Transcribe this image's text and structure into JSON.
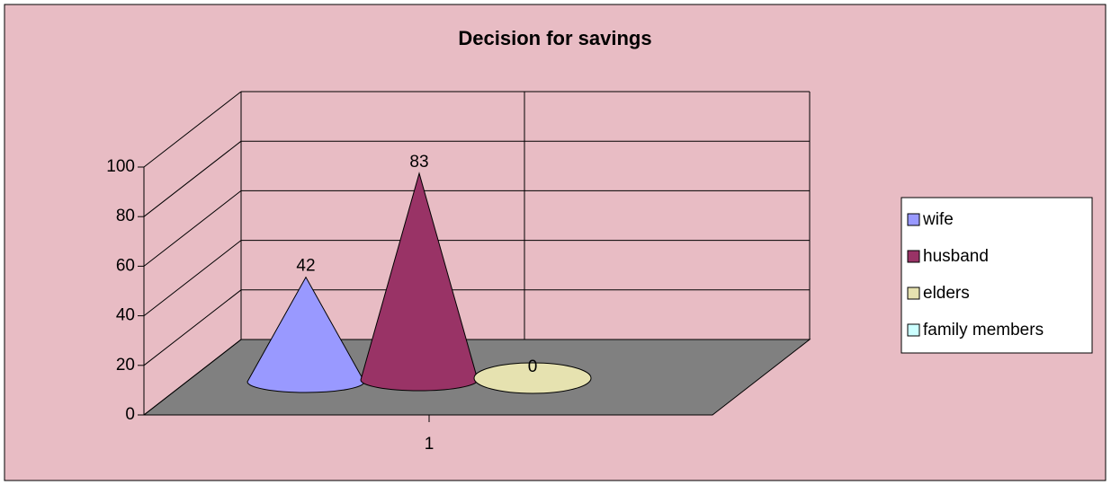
{
  "chart_data": {
    "type": "cone3d",
    "title": "Decision for savings",
    "categories": [
      "1"
    ],
    "series": [
      {
        "name": "wife",
        "color": "#9999ff",
        "values": [
          42
        ]
      },
      {
        "name": "husband",
        "color": "#993366",
        "values": [
          83
        ]
      },
      {
        "name": "elders",
        "color": "#e6e2b0",
        "values": [
          0
        ]
      },
      {
        "name": "family members",
        "color": "#ccffff",
        "values": [
          null
        ]
      }
    ],
    "ylim": [
      0,
      100
    ],
    "yticks": [
      0,
      20,
      40,
      60,
      80,
      100
    ],
    "grid": true,
    "legend": "right"
  }
}
